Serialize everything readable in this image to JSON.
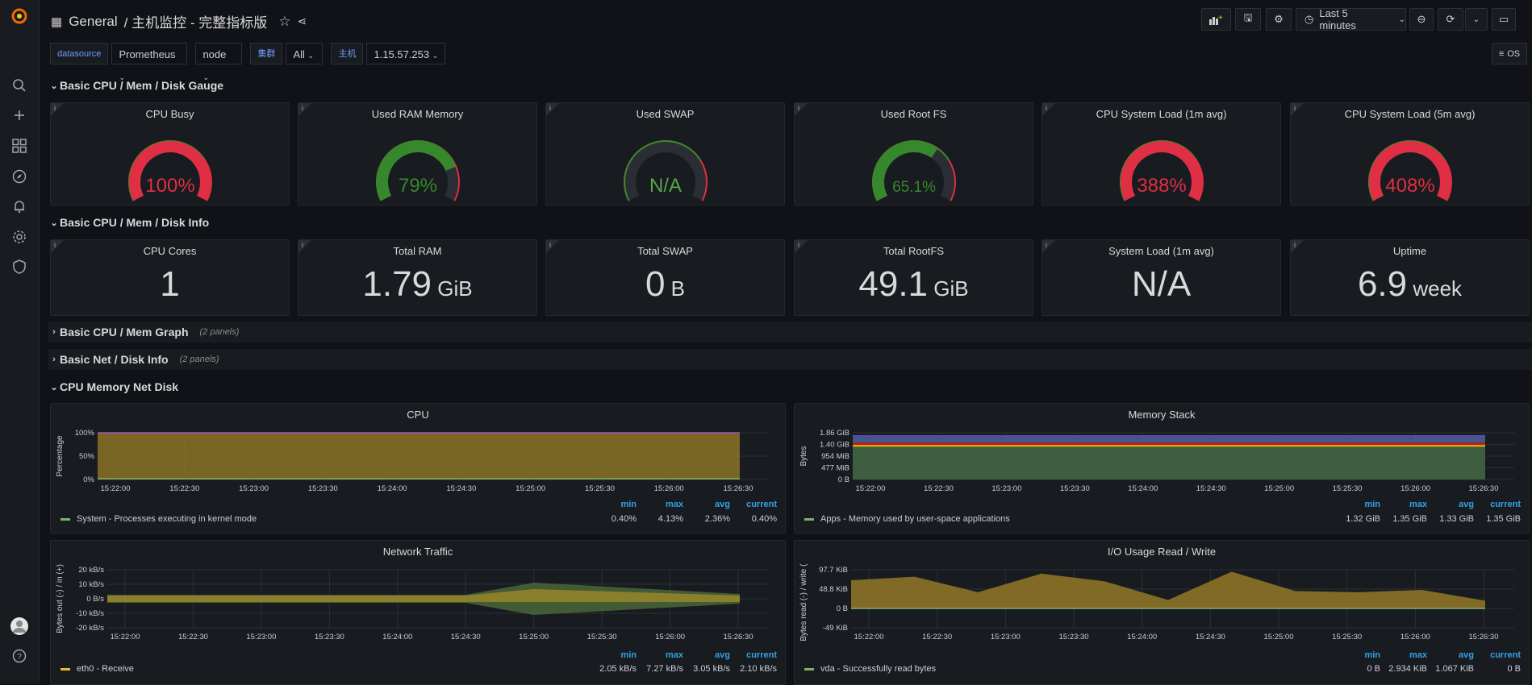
{
  "nav": {
    "title": "General",
    "dashboard": "/ 主机监控 - 完整指标版",
    "time_range": "Last 5 minutes",
    "os_label": "OS"
  },
  "variables": [
    {
      "label": "datasource",
      "value": "Prometheus"
    },
    {
      "label": "",
      "value": "node"
    },
    {
      "label": "集群",
      "value": "All"
    },
    {
      "label": "主机",
      "value": "1.15.57.253"
    }
  ],
  "rows": {
    "gauge_row": "Basic CPU / Mem / Disk Gauge",
    "info_row": "Basic CPU / Mem / Disk Info",
    "graph_row": "Basic CPU / Mem Graph",
    "graph_row_count": "(2 panels)",
    "net_row": "Basic Net / Disk Info",
    "net_row_count": "(2 panels)",
    "cmnd_row": "CPU Memory Net Disk"
  },
  "gauges": [
    {
      "title": "CPU Busy",
      "value": "100%",
      "fraction": 1.0,
      "color": "#e02f44"
    },
    {
      "title": "Used RAM Memory",
      "value": "79%",
      "fraction": 0.79,
      "color": "#37872d"
    },
    {
      "title": "Used SWAP",
      "value": "N/A",
      "fraction": 0,
      "color": "#56a64b"
    },
    {
      "title": "Used Root FS",
      "value": "65.1%",
      "fraction": 0.651,
      "color": "#37872d"
    },
    {
      "title": "CPU System Load (1m avg)",
      "value": "388%",
      "fraction": 1.0,
      "color": "#e02f44"
    },
    {
      "title": "CPU System Load (5m avg)",
      "value": "408%",
      "fraction": 1.0,
      "color": "#e02f44"
    }
  ],
  "stats": [
    {
      "title": "CPU Cores",
      "value": "1",
      "unit": ""
    },
    {
      "title": "Total RAM",
      "value": "1.79",
      "unit": " GiB"
    },
    {
      "title": "Total SWAP",
      "value": "0",
      "unit": " B"
    },
    {
      "title": "Total RootFS",
      "value": "49.1",
      "unit": " GiB"
    },
    {
      "title": "System Load (1m avg)",
      "value": "N/A",
      "unit": ""
    },
    {
      "title": "Uptime",
      "value": "6.9",
      "unit": " week"
    }
  ],
  "legend_headers": {
    "min": "min",
    "max": "max",
    "avg": "avg",
    "current": "current"
  },
  "time_ticks": [
    "15:22:00",
    "15:22:30",
    "15:23:00",
    "15:23:30",
    "15:24:00",
    "15:24:30",
    "15:25:00",
    "15:25:30",
    "15:26:00",
    "15:26:30"
  ],
  "charts": {
    "cpu": {
      "title": "CPU",
      "ylabel": "Percentage",
      "yticks": [
        "100%",
        "50%",
        "0%"
      ],
      "legend": {
        "name": "System - Processes executing in kernel mode",
        "min": "0.40%",
        "max": "4.13%",
        "avg": "2.36%",
        "current": "0.40%",
        "color": "#7eb26d"
      }
    },
    "mem": {
      "title": "Memory Stack",
      "ylabel": "Bytes",
      "yticks": [
        "1.86 GiB",
        "1.40 GiB",
        "954 MiB",
        "477 MiB",
        "0 B"
      ],
      "legend": {
        "name": "Apps - Memory used by user-space applications",
        "min": "1.32 GiB",
        "max": "1.35 GiB",
        "avg": "1.33 GiB",
        "current": "1.35 GiB",
        "color": "#7eb26d"
      }
    },
    "net": {
      "title": "Network Traffic",
      "ylabel": "Bytes out (-) / in (+)",
      "yticks": [
        "20 kB/s",
        "10 kB/s",
        "0 B/s",
        "-10 kB/s",
        "-20 kB/s"
      ],
      "legend": {
        "name": "eth0 - Receive",
        "min": "2.05 kB/s",
        "max": "7.27 kB/s",
        "avg": "3.05 kB/s",
        "current": "2.10 kB/s",
        "color": "#eab839"
      }
    },
    "io": {
      "title": "I/O Usage Read / Write",
      "ylabel": "Bytes read (-) / write (+)",
      "yticks": [
        "97.7 KiB",
        "48.8 KiB",
        "0 B",
        "-49 KiB"
      ],
      "legend": {
        "name": "vda - Successfully read bytes",
        "min": "0 B",
        "max": "2.934 KiB",
        "avg": "1.067 KiB",
        "current": "0 B",
        "color": "#7eb26d"
      }
    }
  },
  "colors": {
    "ok": "#37872d",
    "warn": "#e02f44",
    "accent": "#33a2e5",
    "brand": "#f46800"
  }
}
